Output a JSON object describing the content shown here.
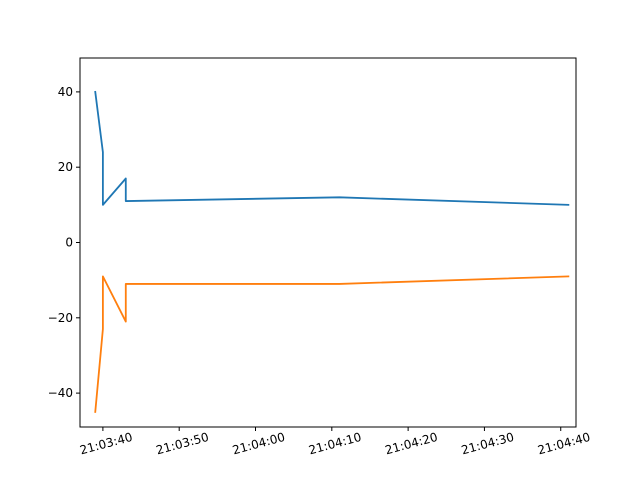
{
  "chart_data": {
    "type": "line",
    "title": "",
    "xlabel": "",
    "ylabel": "",
    "x_is_time": true,
    "xlim": [
      "21:03:37",
      "21:04:42"
    ],
    "ylim": [
      -49,
      49
    ],
    "x_ticks": [
      "21:03:40",
      "21:03:50",
      "21:04:00",
      "21:04:10",
      "21:04:20",
      "21:04:30",
      "21:04:40"
    ],
    "y_ticks": [
      40,
      20,
      0,
      -20,
      -40
    ],
    "y_tick_labels": [
      "40",
      "20",
      "0",
      "−20",
      "−40"
    ],
    "grid": false,
    "legend": "none",
    "series": [
      {
        "color": "#1f77b4",
        "x": [
          "21:03:39",
          "21:03:40",
          "21:03:40",
          "21:03:40",
          "21:03:43",
          "21:03:43",
          "21:04:11",
          "21:04:41"
        ],
        "values": [
          40,
          24,
          17,
          10,
          17,
          11,
          12,
          10
        ]
      },
      {
        "color": "#ff7f0e",
        "x": [
          "21:03:39",
          "21:03:40",
          "21:03:40",
          "21:03:40",
          "21:03:43",
          "21:03:43",
          "21:04:11",
          "21:04:41"
        ],
        "values": [
          -45,
          -23,
          -16,
          -9,
          -21,
          -11,
          -11,
          -9
        ]
      }
    ]
  }
}
